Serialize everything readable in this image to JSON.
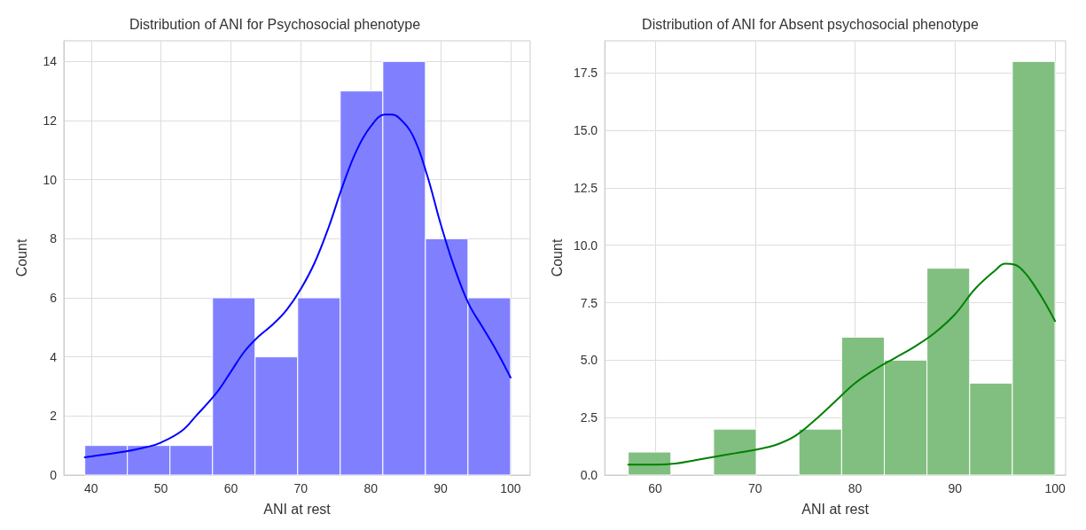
{
  "chart_data": [
    {
      "type": "histogram",
      "title": "Distribution of ANI for Psychosocial phenotype",
      "xlabel": "ANI at rest",
      "ylabel": "Count",
      "bins": [
        39.1,
        45.19,
        51.28,
        57.37,
        63.46,
        69.55,
        75.64,
        81.73,
        87.82,
        93.91,
        100
      ],
      "values": [
        1,
        1,
        1,
        6,
        4,
        6,
        13,
        14,
        8,
        6
      ],
      "color": "#8080ff",
      "series": [
        {
          "type": "line",
          "color": "#0000ff",
          "x": [
            39.1,
            42,
            45,
            48,
            50,
            53,
            55,
            58,
            60,
            62,
            64,
            66,
            68,
            70,
            72,
            74,
            76,
            78,
            80,
            82,
            83,
            84,
            86,
            88,
            90,
            92,
            94,
            96,
            98,
            100
          ],
          "values": [
            0.6,
            0.7,
            0.8,
            0.95,
            1.1,
            1.5,
            2,
            2.8,
            3.5,
            4.2,
            4.7,
            5.1,
            5.6,
            6.3,
            7.2,
            8.4,
            9.8,
            11,
            11.8,
            12.2,
            12.2,
            12.1,
            11.5,
            10.2,
            8.5,
            7,
            5.8,
            5,
            4.2,
            3.3
          ]
        }
      ],
      "xlim": [
        36.1,
        102.8
      ],
      "ylim": [
        0,
        14.7
      ],
      "xticks": [
        40,
        50,
        60,
        70,
        80,
        90,
        100
      ],
      "yticks": [
        0,
        2,
        4,
        6,
        8,
        10,
        12,
        14
      ],
      "grid": true
    },
    {
      "type": "histogram",
      "title": "Distribution of ANI for Absent psychosocial phenotype",
      "xlabel": "ANI at rest",
      "ylabel": "Count",
      "bins": [
        57.3,
        61.57,
        65.84,
        70.11,
        74.38,
        78.65,
        82.92,
        87.19,
        91.46,
        95.73,
        100
      ],
      "values": [
        1,
        0,
        2,
        0,
        2,
        6,
        5,
        9,
        4,
        18
      ],
      "color": "#80bf80",
      "series": [
        {
          "type": "line",
          "color": "#008000",
          "x": [
            57.3,
            60,
            62,
            64,
            66,
            68,
            70,
            72,
            74,
            76,
            78,
            80,
            82,
            84,
            86,
            88,
            90,
            92,
            94,
            95,
            96,
            97,
            98,
            99,
            100
          ],
          "values": [
            0.45,
            0.45,
            0.5,
            0.65,
            0.8,
            0.95,
            1.1,
            1.3,
            1.7,
            2.4,
            3.2,
            4.0,
            4.6,
            5.1,
            5.6,
            6.2,
            7.0,
            8.1,
            8.9,
            9.2,
            9.15,
            8.8,
            8.2,
            7.5,
            6.7
          ]
        }
      ],
      "xlim": [
        54.95,
        101.06
      ],
      "ylim": [
        0,
        18.9
      ],
      "xticks": [
        60,
        70,
        80,
        90,
        100
      ],
      "yticks": [
        {
          "value": 0,
          "label": "0.0"
        },
        {
          "value": 2.5,
          "label": "2.5"
        },
        {
          "value": 5,
          "label": "5.0"
        },
        {
          "value": 7.5,
          "label": "7.5"
        },
        {
          "value": 10,
          "label": "10.0"
        },
        {
          "value": 12.5,
          "label": "12.5"
        },
        {
          "value": 15,
          "label": "15.0"
        },
        {
          "value": 17.5,
          "label": "17.5"
        }
      ],
      "grid": true
    }
  ]
}
